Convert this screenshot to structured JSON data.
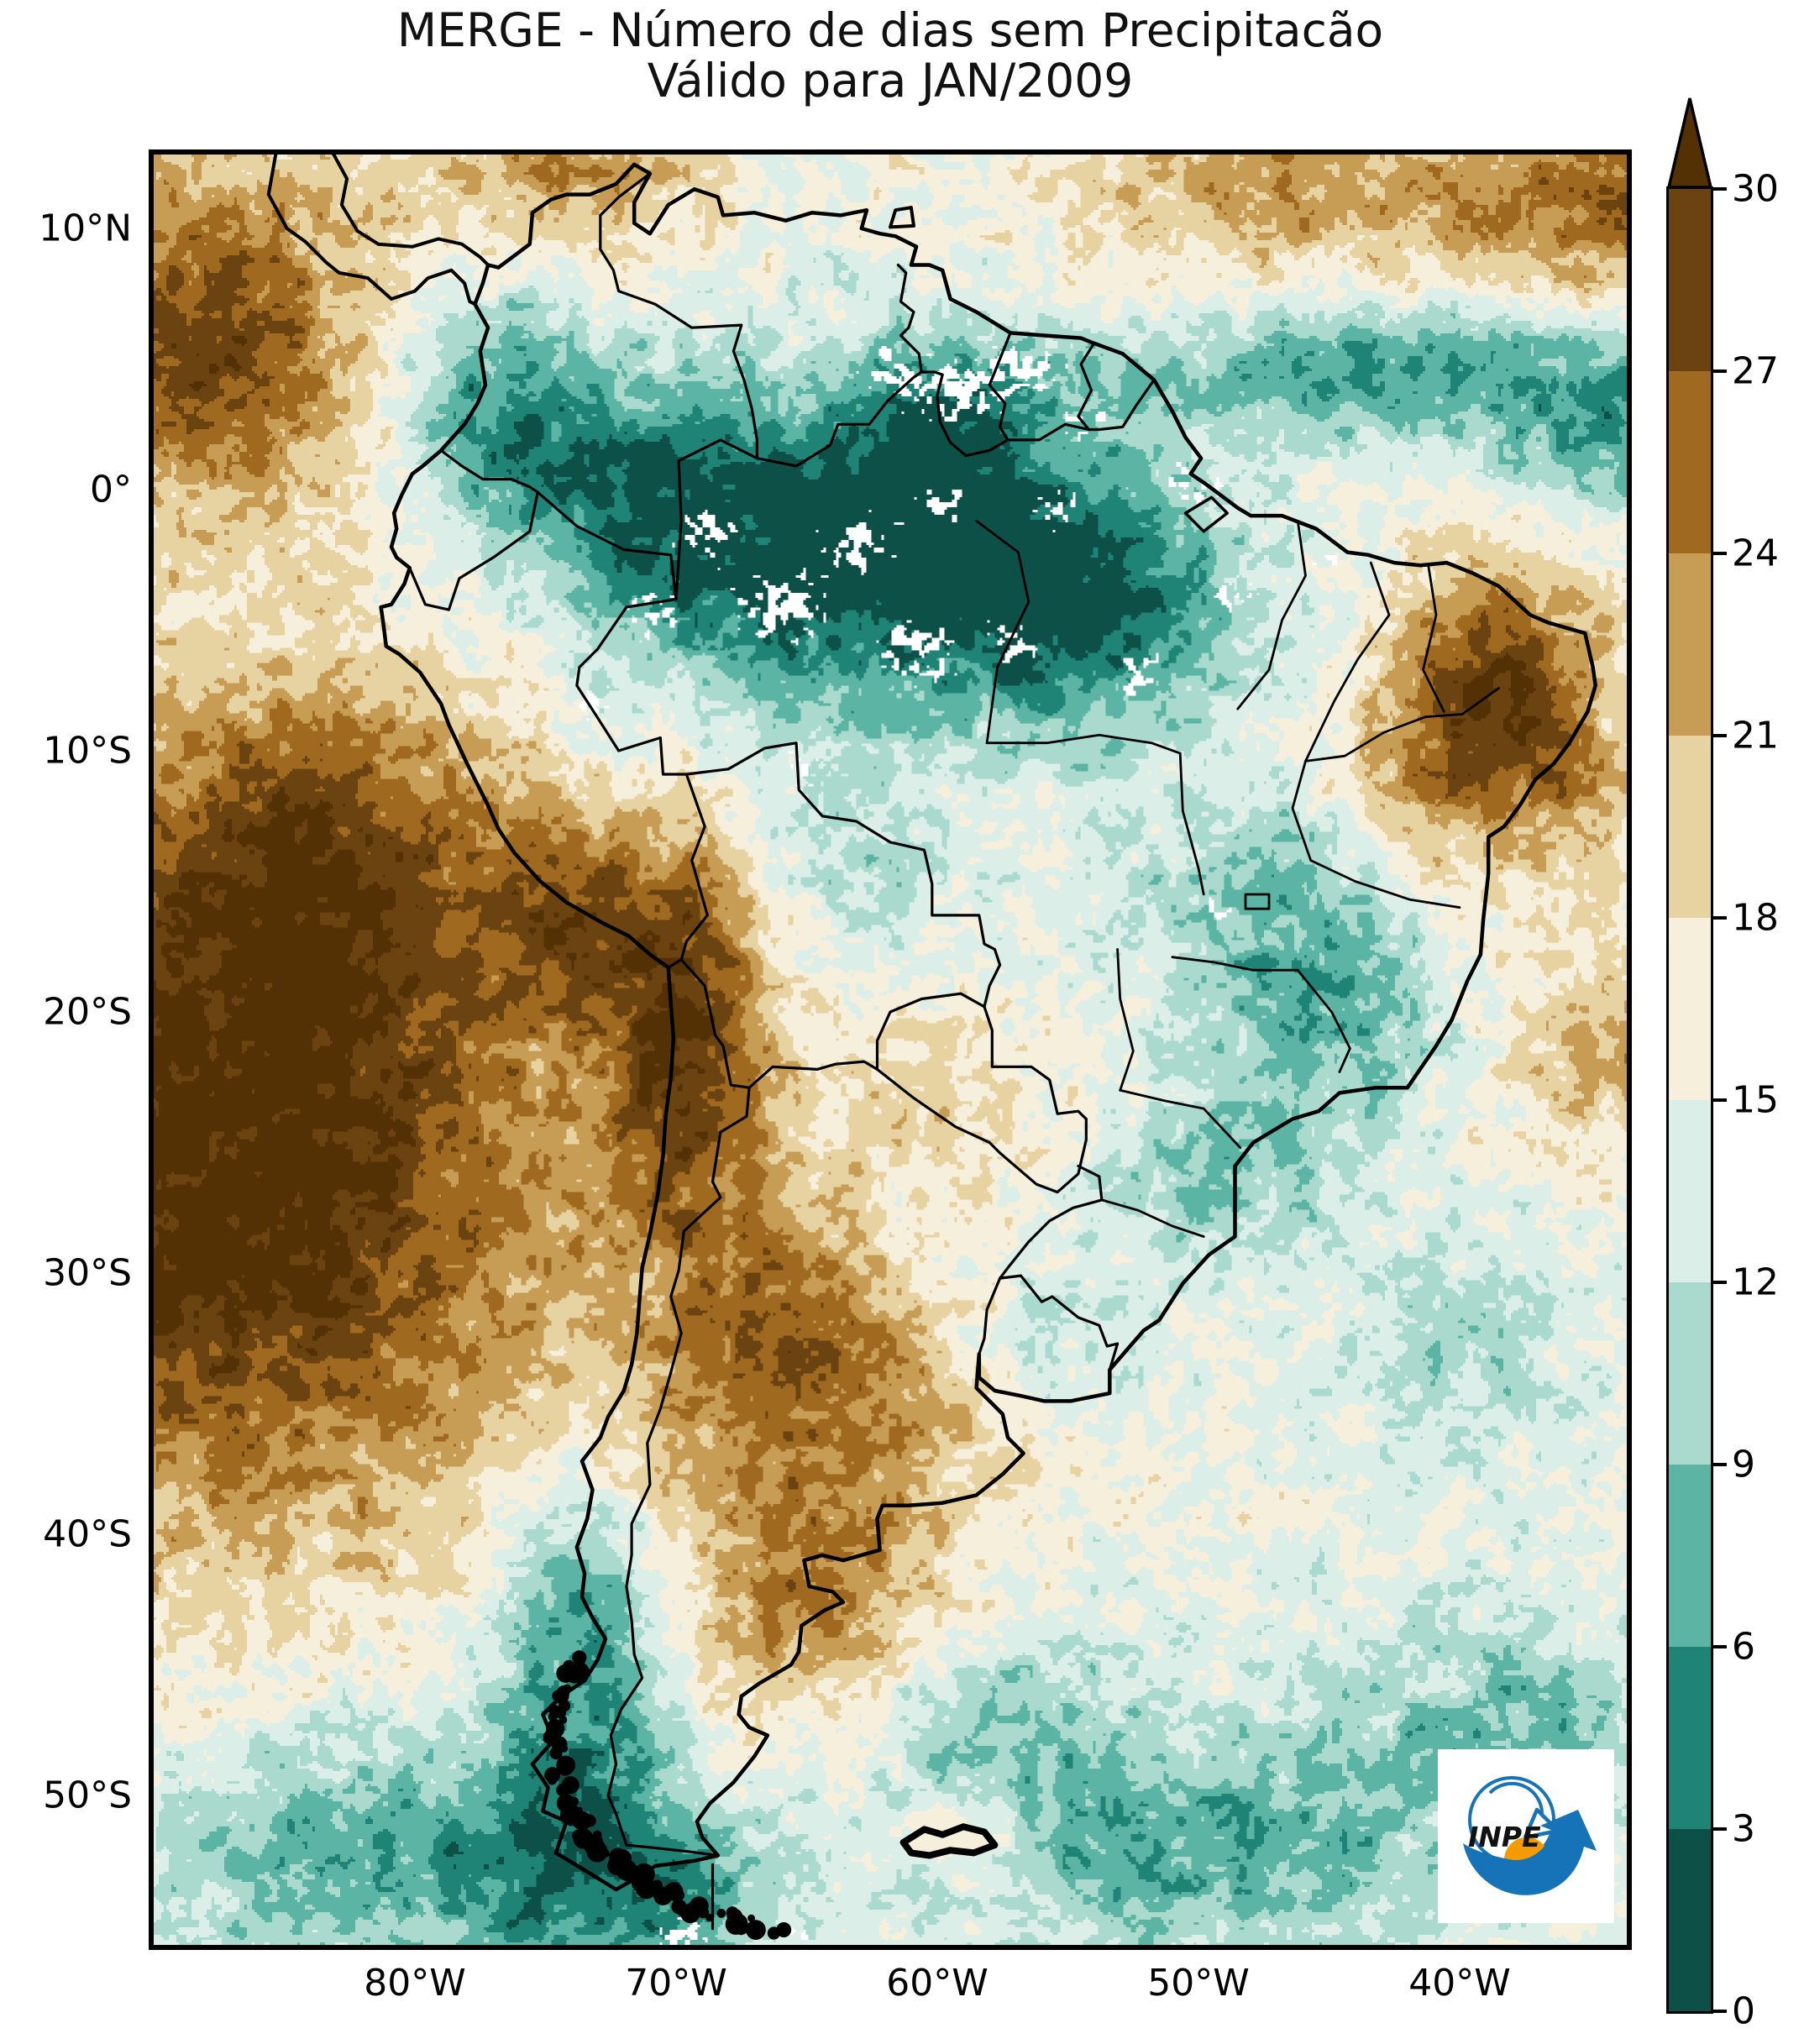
{
  "title": {
    "line1": "MERGE - Número de dias sem Precipitacão",
    "line2": "Válido para JAN/2009"
  },
  "axes": {
    "y_ticks": [
      "10°N",
      "0°",
      "10°S",
      "20°S",
      "30°S",
      "40°S",
      "50°S"
    ],
    "x_ticks": [
      "80°W",
      "70°W",
      "60°W",
      "50°W",
      "40°W"
    ]
  },
  "colorbar": {
    "tick_labels": [
      "0",
      "3",
      "6",
      "9",
      "12",
      "15",
      "18",
      "21",
      "24",
      "27",
      "30"
    ],
    "colors_bottom_to_top": [
      "#0d5048",
      "#1f8375",
      "#5bb4a4",
      "#a9dacd",
      "#dbeee8",
      "#f5efdc",
      "#e7d2a2",
      "#c79c55",
      "#9f6a20",
      "#6b4310"
    ],
    "over_color": "#543005",
    "extend": "max"
  },
  "logo": {
    "text": "INPE",
    "blue": "#1673b8",
    "orange": "#f59b00"
  },
  "chart_data": {
    "type": "heatmap",
    "title": "MERGE - Número de dias sem Precipitacão",
    "subtitle": "Válido para JAN/2009",
    "variable": "número de dias sem precipitação",
    "units": "dias",
    "bins": [
      0,
      3,
      6,
      9,
      12,
      15,
      18,
      21,
      24,
      27,
      30
    ],
    "extend": "max",
    "palette": [
      "#0d5048",
      "#1f8375",
      "#5bb4a4",
      "#a9dacd",
      "#dbeee8",
      "#f5efdc",
      "#e7d2a2",
      "#c79c55",
      "#9f6a20",
      "#6b4310"
    ],
    "over_color": "#543005",
    "missing_color": "#ffffff",
    "domain": {
      "lon": [
        -90.2,
        -33.4
      ],
      "lat": [
        -55.9,
        13.0
      ]
    },
    "x_tick_values": [
      -80,
      -70,
      -60,
      -50,
      -40
    ],
    "y_tick_values": [
      10,
      0,
      -10,
      -20,
      -30,
      -40,
      -50
    ],
    "base_value": 15,
    "field_blobs": [
      [
        -87,
        -27,
        17,
        13,
        13
      ],
      [
        -84,
        -14,
        10,
        8,
        7
      ],
      [
        -88,
        6,
        13,
        7,
        7
      ],
      [
        -74,
        12,
        7,
        6,
        3
      ],
      [
        -69.5,
        -21,
        13,
        3.2,
        7.5
      ],
      [
        -74,
        -16.5,
        8,
        3.5,
        3.5
      ],
      [
        -66,
        -37,
        7,
        6.5,
        8
      ],
      [
        -64,
        -44,
        6,
        5,
        5
      ],
      [
        -60.5,
        -34,
        4,
        5,
        4
      ],
      [
        -66,
        -31,
        5,
        4,
        4
      ],
      [
        -38.5,
        -7.5,
        14,
        4.2,
        4.8
      ],
      [
        -41,
        -12,
        5,
        4,
        4
      ],
      [
        -35,
        -12,
        4,
        3,
        3
      ],
      [
        -45,
        11.5,
        8,
        10,
        3.5
      ],
      [
        -33.5,
        11,
        9,
        5,
        4
      ],
      [
        -42,
        4.5,
        -9,
        12,
        2.6
      ],
      [
        -33.5,
        1.5,
        -7,
        5,
        3
      ],
      [
        -64,
        -3.5,
        -13,
        8.5,
        5.5
      ],
      [
        -54,
        -4.5,
        -11,
        6,
        5
      ],
      [
        -71.5,
        0.5,
        -10,
        5,
        4.5
      ],
      [
        -77.5,
        3.5,
        -9,
        3.5,
        4.5
      ],
      [
        -60,
        2,
        -10,
        5,
        4
      ],
      [
        -47,
        -15.5,
        -6,
        5,
        4
      ],
      [
        -45,
        -20.5,
        -7,
        4.5,
        4
      ],
      [
        -49.5,
        -26.5,
        -6,
        4.5,
        3.5
      ],
      [
        -56,
        -32.5,
        -4,
        4,
        3
      ],
      [
        -73.5,
        -44,
        -11,
        3.5,
        7
      ],
      [
        -72,
        -53.5,
        -9,
        6,
        4
      ],
      [
        -82,
        -52,
        -8,
        9,
        5
      ],
      [
        -50,
        -52,
        -8,
        10,
        4.5
      ],
      [
        -59,
        -47,
        -6,
        6,
        4
      ],
      [
        -38,
        -47,
        -6,
        7,
        4
      ],
      [
        -34.5,
        -21.5,
        6,
        4.5,
        4
      ],
      [
        -40,
        -33,
        -4,
        5,
        4
      ],
      [
        -59,
        -51.5,
        5,
        2.5,
        2
      ],
      [
        -63,
        -15,
        -4,
        4,
        3.5
      ],
      [
        -60,
        -23,
        4,
        4,
        3.5
      ]
    ],
    "white_patches": [
      [
        -66,
        -4.5,
        1.7,
        1.3,
        1.2
      ],
      [
        -63,
        -2.2,
        1.5,
        1.2,
        1.1
      ],
      [
        -60.8,
        -6.2,
        1.5,
        1.2,
        1.1
      ],
      [
        -68.8,
        -1.8,
        1.3,
        1,
        1
      ],
      [
        -57.2,
        -5.8,
        1.2,
        1,
        0.9
      ],
      [
        -52.3,
        -7.2,
        1.1,
        1,
        0.9
      ],
      [
        -59.2,
        3.8,
        1.7,
        1.2,
        1.25
      ],
      [
        -56.6,
        4.7,
        1.3,
        1,
        1.1
      ],
      [
        -61.8,
        4.4,
        1.1,
        0.9,
        0.9
      ],
      [
        -50.2,
        0.3,
        1.2,
        1,
        1
      ],
      [
        -54.2,
        2.6,
        1,
        0.9,
        0.85
      ],
      [
        -48.6,
        -4.2,
        1,
        0.9,
        0.8
      ],
      [
        -70.8,
        -4.8,
        1.2,
        1,
        0.95
      ],
      [
        -73.2,
        -8.2,
        0.9,
        0.8,
        0.8
      ],
      [
        -65.2,
        -10.8,
        0.9,
        0.8,
        0.8
      ],
      [
        -49.2,
        -16.2,
        0.7,
        0.6,
        0.75
      ],
      [
        -69.8,
        -55.4,
        1.1,
        0.7,
        1
      ],
      [
        -65.4,
        -55.3,
        0.9,
        0.6,
        0.9
      ],
      [
        -44.8,
        -2.8,
        0.8,
        0.7,
        0.7
      ],
      [
        -59.8,
        -0.5,
        1.1,
        0.9,
        0.85
      ],
      [
        -55.4,
        -0.8,
        1,
        0.9,
        0.8
      ]
    ],
    "regions_summary": [
      "Amazon basin 0-6 dry days (dark teal) with white missing-data patches",
      "SE Pacific ocean 27->30+ dry days (dark brown core)",
      "Atacama / N Chile strip 24-30 dry days",
      "NE Brazil (Ceará/Pernambuco) 24-30 dry days brown core",
      "Central/SE Brazil 9-15 (light teal), S Brazil teal patch 6-12",
      "Argentina pampas/Patagonia 18-24 tan-brown",
      "Southern ocean and S Chile 3-12 teal, fjord coast drawn black",
      "Tropical Atlantic ITCZ teal band ~5N, subtropical Atlantic cream 15-21"
    ]
  }
}
